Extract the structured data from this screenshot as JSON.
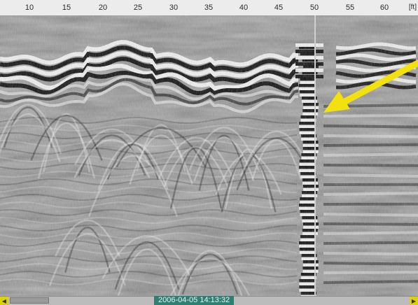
{
  "ruler": {
    "ticks": [
      "10",
      "15",
      "20",
      "25",
      "30",
      "35",
      "40",
      "45",
      "50",
      "55",
      "60"
    ],
    "unit": "[ft]"
  },
  "status": {
    "timestamp": "2006-04-05 14:13:32"
  },
  "colors": {
    "background": "#7a7a7a",
    "band_light": "#f4f4f4",
    "band_dark": "#0a0a0a",
    "cursor_line": "#cfcfcf",
    "arrow": "#f2e10f",
    "timestamp_bg": "#2f7f73",
    "scroll_button": "#d8d400"
  },
  "icons": {
    "scroll_left": "arrow-left-icon",
    "scroll_right": "arrow-right-icon",
    "annotation": "arrow-annotation-icon"
  }
}
